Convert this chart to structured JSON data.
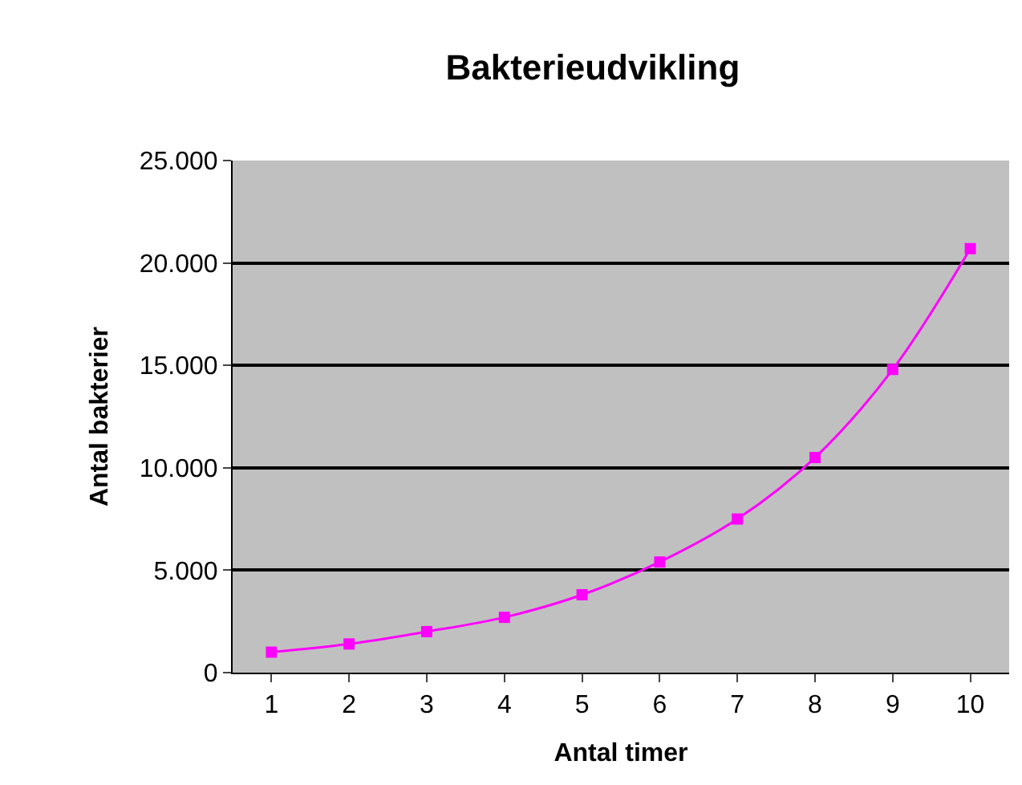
{
  "chart_data": {
    "type": "line",
    "title": "Bakterieudvikling",
    "xlabel": "Antal timer",
    "ylabel": "Antal bakterier",
    "categories": [
      "1",
      "2",
      "3",
      "4",
      "5",
      "6",
      "7",
      "8",
      "9",
      "10"
    ],
    "series": [
      {
        "color": "#ff00ff",
        "values": [
          1000,
          1400,
          2000,
          2700,
          3800,
          5400,
          7500,
          10500,
          14800,
          20700
        ]
      }
    ],
    "ylim": [
      0,
      25000
    ],
    "yticks": [
      {
        "value": 0,
        "label": "0"
      },
      {
        "value": 5000,
        "label": "5.000"
      },
      {
        "value": 10000,
        "label": "10.000"
      },
      {
        "value": 15000,
        "label": "15.000"
      },
      {
        "value": 20000,
        "label": "20.000"
      },
      {
        "value": 25000,
        "label": "25.000"
      }
    ],
    "grid": "y",
    "marker": "square",
    "line_style": "solid"
  }
}
